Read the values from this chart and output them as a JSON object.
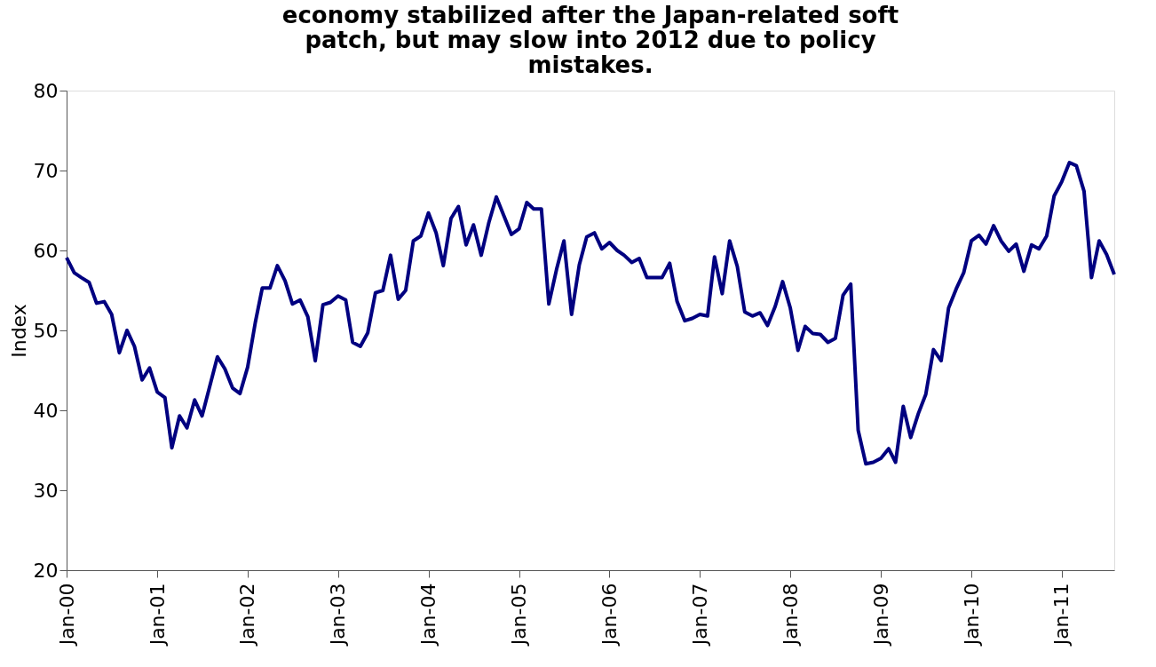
{
  "chart_data": {
    "type": "line",
    "title": "economy stabilized after the Japan-related soft patch, but may slow into 2012 due to policy mistakes.",
    "ylabel": "Index",
    "x": [
      "2000-01",
      "2000-02",
      "2000-03",
      "2000-04",
      "2000-05",
      "2000-06",
      "2000-07",
      "2000-08",
      "2000-09",
      "2000-10",
      "2000-11",
      "2000-12",
      "2001-01",
      "2001-02",
      "2001-03",
      "2001-04",
      "2001-05",
      "2001-06",
      "2001-07",
      "2001-08",
      "2001-09",
      "2001-10",
      "2001-11",
      "2001-12",
      "2002-01",
      "2002-02",
      "2002-03",
      "2002-04",
      "2002-05",
      "2002-06",
      "2002-07",
      "2002-08",
      "2002-09",
      "2002-10",
      "2002-11",
      "2002-12",
      "2003-01",
      "2003-02",
      "2003-03",
      "2003-04",
      "2003-05",
      "2003-06",
      "2003-07",
      "2003-08",
      "2003-09",
      "2003-10",
      "2003-11",
      "2003-12",
      "2004-01",
      "2004-02",
      "2004-03",
      "2004-04",
      "2004-05",
      "2004-06",
      "2004-07",
      "2004-08",
      "2004-09",
      "2004-10",
      "2004-11",
      "2004-12",
      "2005-01",
      "2005-02",
      "2005-03",
      "2005-04",
      "2005-05",
      "2005-06",
      "2005-07",
      "2005-08",
      "2005-09",
      "2005-10",
      "2005-11",
      "2005-12",
      "2006-01",
      "2006-02",
      "2006-03",
      "2006-04",
      "2006-05",
      "2006-06",
      "2006-07",
      "2006-08",
      "2006-09",
      "2006-10",
      "2006-11",
      "2006-12",
      "2007-01",
      "2007-02",
      "2007-03",
      "2007-04",
      "2007-05",
      "2007-06",
      "2007-07",
      "2007-08",
      "2007-09",
      "2007-10",
      "2007-11",
      "2007-12",
      "2008-01",
      "2008-02",
      "2008-03",
      "2008-04",
      "2008-05",
      "2008-06",
      "2008-07",
      "2008-08",
      "2008-09",
      "2008-10",
      "2008-11",
      "2008-12",
      "2009-01",
      "2009-02",
      "2009-03",
      "2009-04",
      "2009-05",
      "2009-06",
      "2009-07",
      "2009-08",
      "2009-09",
      "2009-10",
      "2009-11",
      "2009-12",
      "2010-01",
      "2010-02",
      "2010-03",
      "2010-04",
      "2010-05",
      "2010-06",
      "2010-07",
      "2010-08",
      "2010-09",
      "2010-10",
      "2010-11",
      "2010-12",
      "2011-01",
      "2011-02",
      "2011-03",
      "2011-04",
      "2011-05",
      "2011-06",
      "2011-07",
      "2011-08"
    ],
    "series": [
      {
        "color": "#000080",
        "values": [
          59.1,
          57.2,
          56.6,
          56.0,
          53.4,
          53.6,
          52.0,
          47.2,
          50.0,
          48.0,
          43.8,
          45.3,
          42.3,
          41.6,
          35.3,
          39.3,
          37.8,
          41.3,
          39.3,
          43.0,
          46.7,
          45.2,
          42.8,
          42.1,
          45.4,
          51.0,
          55.3,
          55.3,
          58.1,
          56.2,
          53.3,
          53.8,
          51.7,
          46.2,
          53.2,
          53.5,
          54.3,
          53.8,
          48.5,
          48.0,
          49.7,
          54.7,
          55.0,
          59.4,
          53.9,
          55.0,
          61.2,
          61.8,
          64.7,
          62.2,
          58.1,
          64.0,
          65.5,
          60.7,
          63.2,
          59.4,
          63.5,
          66.7,
          64.3,
          62.0,
          62.7,
          66.0,
          65.2,
          65.2,
          53.3,
          57.6,
          61.2,
          52.0,
          58.2,
          61.7,
          62.2,
          60.2,
          61.0,
          60.0,
          59.4,
          58.5,
          59.0,
          56.6,
          56.6,
          56.6,
          58.4,
          53.6,
          51.2,
          51.5,
          52.0,
          51.8,
          59.2,
          54.6,
          61.2,
          58.0,
          52.3,
          51.8,
          52.2,
          50.6,
          53.0,
          56.1,
          52.8,
          47.5,
          50.5,
          49.6,
          49.5,
          48.5,
          49.0,
          54.4,
          55.8,
          37.5,
          33.3,
          33.5,
          34.0,
          35.2,
          33.5,
          40.5,
          36.6,
          39.6,
          42.0,
          47.6,
          46.2,
          52.8,
          55.2,
          57.2,
          61.2,
          61.9,
          60.8,
          63.1,
          61.2,
          59.9,
          60.8,
          57.4,
          60.7,
          60.2,
          61.8,
          66.8,
          68.6,
          71.0,
          70.6,
          67.4,
          56.6,
          61.2,
          59.5,
          57.0
        ]
      }
    ],
    "xlim": [
      "2000-01",
      "2011-08"
    ],
    "xticks": [
      {
        "value": "2000-01",
        "label": "Jan-00"
      },
      {
        "value": "2001-01",
        "label": "Jan-01"
      },
      {
        "value": "2002-01",
        "label": "Jan-02"
      },
      {
        "value": "2003-01",
        "label": "Jan-03"
      },
      {
        "value": "2004-01",
        "label": "Jan-04"
      },
      {
        "value": "2005-01",
        "label": "Jan-05"
      },
      {
        "value": "2006-01",
        "label": "Jan-06"
      },
      {
        "value": "2007-01",
        "label": "Jan-07"
      },
      {
        "value": "2008-01",
        "label": "Jan-08"
      },
      {
        "value": "2009-01",
        "label": "Jan-09"
      },
      {
        "value": "2010-01",
        "label": "Jan-10"
      },
      {
        "value": "2011-01",
        "label": "Jan-11"
      }
    ],
    "ylim": [
      20,
      80
    ],
    "yticks": [
      20,
      30,
      40,
      50,
      60,
      70,
      80
    ],
    "grid": false,
    "legend": false,
    "marker": "none",
    "line_style": "solid"
  }
}
